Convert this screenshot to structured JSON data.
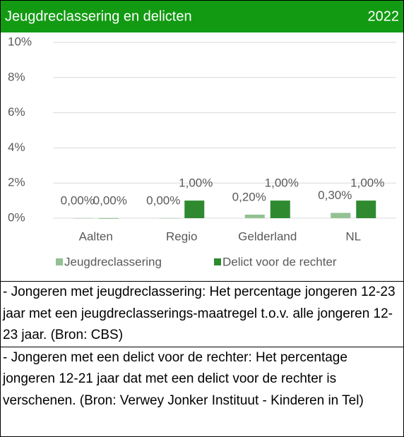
{
  "chart_data": {
    "type": "bar",
    "title": "Jeugdreclassering en delicten",
    "subtitle": "2022",
    "categories": [
      "Aalten",
      "Regio",
      "Gelderland",
      "NL"
    ],
    "series": [
      {
        "name": "Jeugdreclassering",
        "color": "#93c193",
        "values": [
          0,
          0,
          0.2,
          0.3
        ],
        "value_labels": [
          "0,00%",
          "0,00%",
          "0,20%",
          "0,30%"
        ]
      },
      {
        "name": "Delict voor de rechter",
        "color": "#2f8a2f",
        "values": [
          0,
          1,
          1,
          1
        ],
        "value_labels": [
          "0,00%",
          "1,00%",
          "1,00%",
          "1,00%"
        ]
      }
    ],
    "ylim": [
      0,
      10
    ],
    "yticks": [
      {
        "value": 0,
        "label": "0%"
      },
      {
        "value": 2,
        "label": "2%"
      },
      {
        "value": 4,
        "label": "4%"
      },
      {
        "value": 6,
        "label": "6%"
      },
      {
        "value": 8,
        "label": "8%"
      },
      {
        "value": 10,
        "label": "10%"
      }
    ],
    "grid": true,
    "legend": "bottom",
    "header_color": "#129a12"
  },
  "notes": [
    "- Jongeren met jeugdreclassering: Het percentage jongeren 12-23 jaar met een jeugdreclasserings-maatregel t.o.v. alle jongeren 12-23 jaar. (Bron: CBS)",
    "- Jongeren met een delict voor de rechter: Het percentage jongeren 12-21 jaar dat met een delict voor de rechter is verschenen. (Bron: Verwey Jonker Instituut - Kinderen in Tel)"
  ]
}
